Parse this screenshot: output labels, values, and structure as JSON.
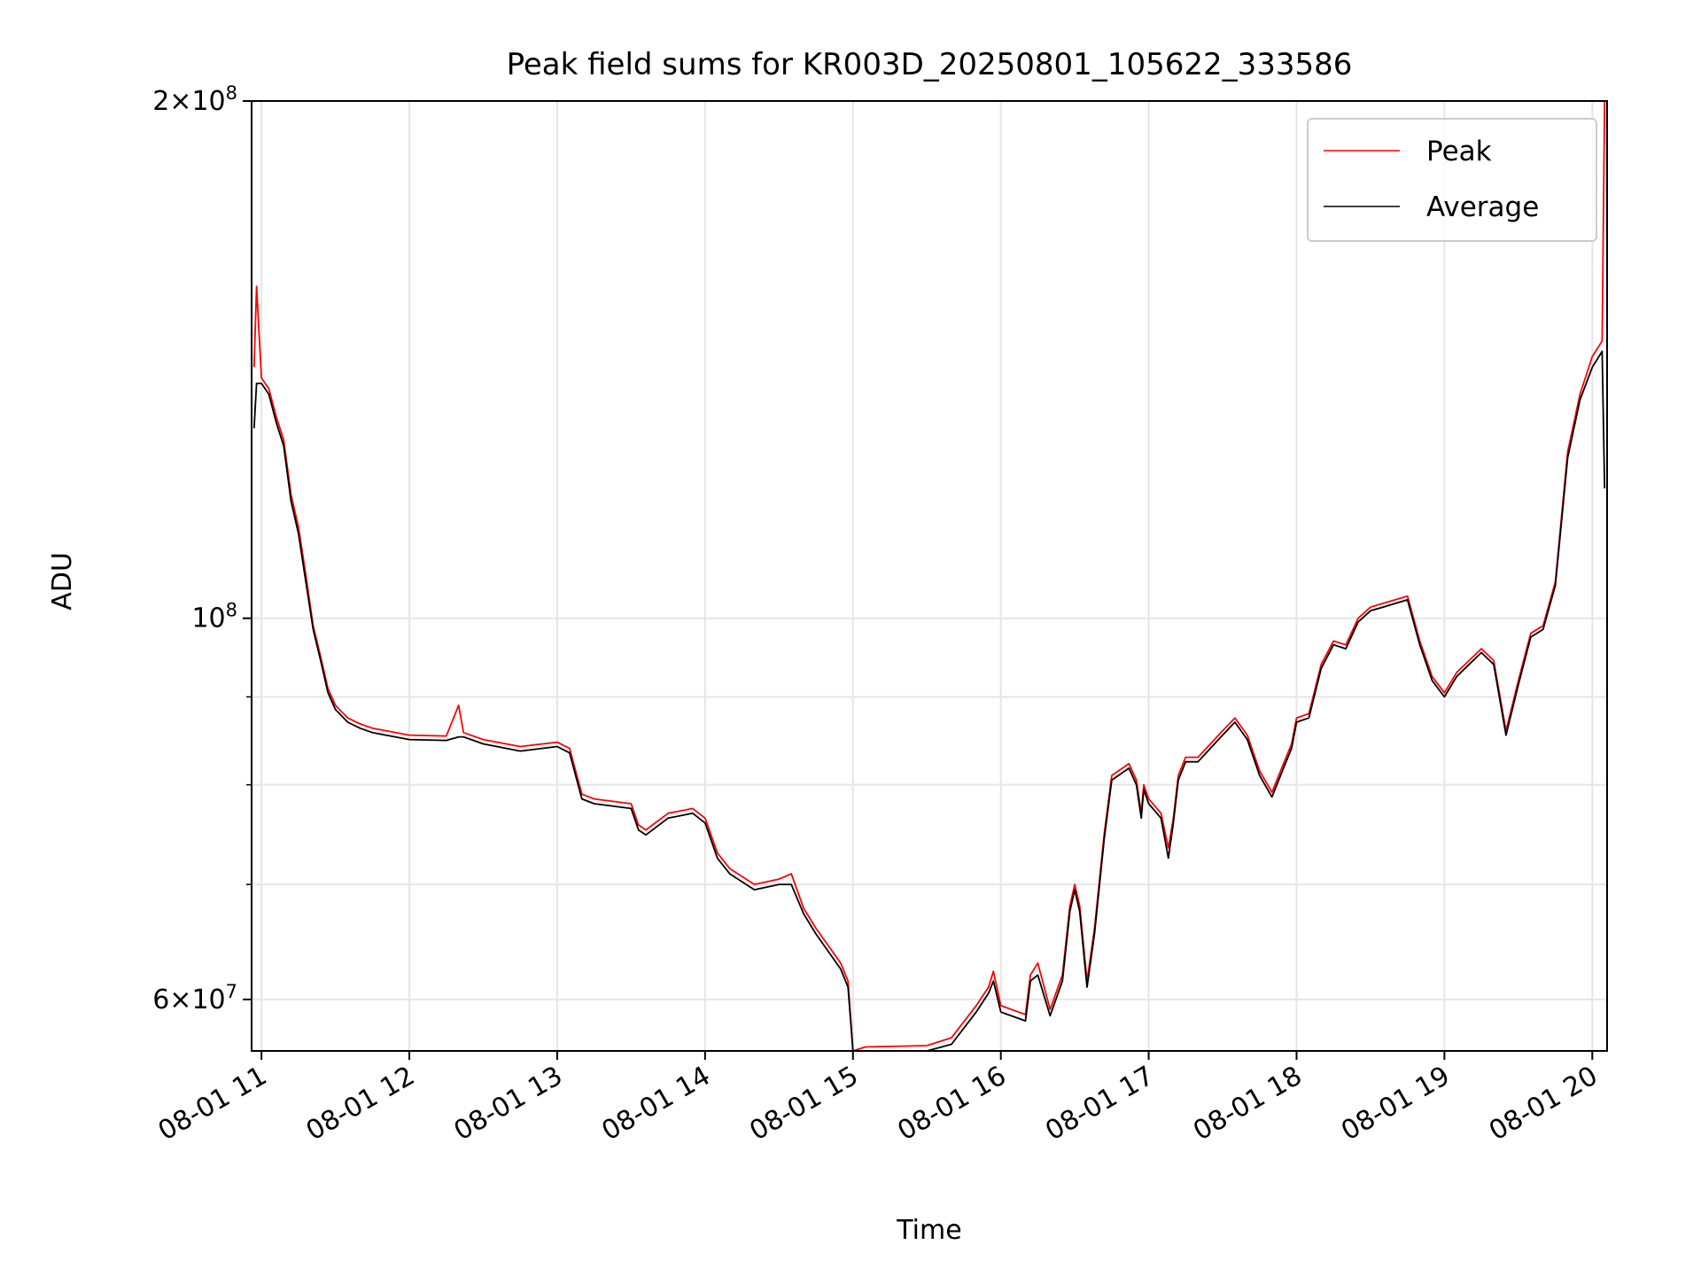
{
  "chart_data": {
    "type": "line",
    "title": "Peak field sums for KR003D_20250801_105622_333586",
    "xlabel": "Time",
    "ylabel": "ADU",
    "yscale": "log",
    "xlim": [
      "2025-08-01 10:56",
      "2025-08-01 20:06"
    ],
    "ylim": [
      56000000,
      200000000
    ],
    "grid": true,
    "legend_position": "top-right",
    "x_ticks": [
      "08-01 11",
      "08-01 12",
      "08-01 13",
      "08-01 14",
      "08-01 15",
      "08-01 16",
      "08-01 17",
      "08-01 18",
      "08-01 19",
      "08-01 20"
    ],
    "y_major_ticks": [
      {
        "value": 60000000,
        "mantissa": "6",
        "exp": "7"
      },
      {
        "value": 100000000,
        "mantissa": "",
        "exp": "8"
      },
      {
        "value": 200000000,
        "mantissa": "2",
        "exp": "8"
      }
    ],
    "y_minor_ticks": [
      70000000,
      80000000,
      90000000
    ],
    "colors": {
      "peak": "#ff0000",
      "average": "#000000",
      "grid": "#e6e6e6"
    },
    "series": [
      {
        "name": "Peak",
        "x": [
          "10:57",
          "10:58",
          "11:00",
          "11:03",
          "11:06",
          "11:09",
          "11:12",
          "11:15",
          "11:18",
          "11:21",
          "11:24",
          "11:27",
          "11:30",
          "11:35",
          "11:40",
          "11:45",
          "12:00",
          "12:15",
          "12:20",
          "12:22",
          "12:30",
          "12:45",
          "13:00",
          "13:05",
          "13:10",
          "13:15",
          "13:30",
          "13:33",
          "13:36",
          "13:45",
          "13:55",
          "14:00",
          "14:05",
          "14:10",
          "14:20",
          "14:30",
          "14:35",
          "14:40",
          "14:45",
          "14:55",
          "14:58",
          "15:00",
          "15:05",
          "15:30",
          "15:40",
          "15:50",
          "15:55",
          "15:57",
          "16:00",
          "16:10",
          "16:12",
          "16:15",
          "16:20",
          "16:25",
          "16:28",
          "16:30",
          "16:32",
          "16:35",
          "16:38",
          "16:42",
          "16:45",
          "16:52",
          "16:55",
          "16:57",
          "16:58",
          "17:00",
          "17:05",
          "17:08",
          "17:10",
          "17:12",
          "17:15",
          "17:20",
          "17:30",
          "17:35",
          "17:40",
          "17:45",
          "17:50",
          "17:55",
          "17:58",
          "18:00",
          "18:05",
          "18:10",
          "18:15",
          "18:20",
          "18:25",
          "18:30",
          "18:35",
          "18:40",
          "18:45",
          "18:50",
          "18:55",
          "19:00",
          "19:05",
          "19:10",
          "19:15",
          "19:20",
          "19:25",
          "19:30",
          "19:35",
          "19:40",
          "19:45",
          "19:50",
          "19:55",
          "20:00",
          "20:04",
          "20:05"
        ],
        "y": [
          140000000,
          156000000,
          138000000,
          136000000,
          131000000,
          127000000,
          118000000,
          113000000,
          106000000,
          99000000,
          95000000,
          91000000,
          89000000,
          87500000,
          86800000,
          86300000,
          85500000,
          85400000,
          89000000,
          85800000,
          85000000,
          84200000,
          84700000,
          84000000,
          79000000,
          78500000,
          78000000,
          75800000,
          75300000,
          77000000,
          77500000,
          76500000,
          73000000,
          71500000,
          70000000,
          70500000,
          71000000,
          67800000,
          66000000,
          63000000,
          61500000,
          55800000,
          56300000,
          56400000,
          57000000,
          59500000,
          61000000,
          62300000,
          59500000,
          58800000,
          62000000,
          63000000,
          59200000,
          62000000,
          68000000,
          70000000,
          68000000,
          61500000,
          66000000,
          75000000,
          81000000,
          82300000,
          80500000,
          77000000,
          80000000,
          78500000,
          77000000,
          73500000,
          76500000,
          81000000,
          83000000,
          83000000,
          86000000,
          87500000,
          85500000,
          81500000,
          79200000,
          82500000,
          84500000,
          87500000,
          88000000,
          94000000,
          97000000,
          96500000,
          100000000,
          101500000,
          102000000,
          102500000,
          103000000,
          97000000,
          92500000,
          90500000,
          93000000,
          94500000,
          96000000,
          94500000,
          86000000,
          92000000,
          98000000,
          99000000,
          105000000,
          125000000,
          135000000,
          142000000,
          145000000,
          200000000
        ]
      },
      {
        "name": "Average",
        "x": [
          "10:57",
          "10:58",
          "11:00",
          "11:03",
          "11:06",
          "11:09",
          "11:12",
          "11:15",
          "11:18",
          "11:21",
          "11:24",
          "11:27",
          "11:30",
          "11:35",
          "11:40",
          "11:45",
          "12:00",
          "12:15",
          "12:20",
          "12:22",
          "12:30",
          "12:45",
          "13:00",
          "13:05",
          "13:10",
          "13:15",
          "13:30",
          "13:33",
          "13:36",
          "13:45",
          "13:55",
          "14:00",
          "14:05",
          "14:10",
          "14:20",
          "14:30",
          "14:35",
          "14:40",
          "14:45",
          "14:55",
          "14:58",
          "15:00",
          "15:05",
          "15:30",
          "15:40",
          "15:50",
          "15:55",
          "15:57",
          "16:00",
          "16:10",
          "16:12",
          "16:15",
          "16:20",
          "16:25",
          "16:28",
          "16:30",
          "16:32",
          "16:35",
          "16:38",
          "16:42",
          "16:45",
          "16:52",
          "16:55",
          "16:57",
          "16:58",
          "17:00",
          "17:05",
          "17:08",
          "17:10",
          "17:12",
          "17:15",
          "17:20",
          "17:30",
          "17:35",
          "17:40",
          "17:45",
          "17:50",
          "17:55",
          "17:58",
          "18:00",
          "18:05",
          "18:10",
          "18:15",
          "18:20",
          "18:25",
          "18:30",
          "18:35",
          "18:40",
          "18:45",
          "18:50",
          "18:55",
          "19:00",
          "19:05",
          "19:10",
          "19:15",
          "19:20",
          "19:25",
          "19:30",
          "19:35",
          "19:40",
          "19:45",
          "19:50",
          "19:55",
          "20:00",
          "20:04",
          "20:05"
        ],
        "y": [
          129000000,
          137000000,
          137000000,
          135000000,
          130000000,
          126000000,
          117000000,
          112000000,
          105000000,
          98500000,
          94500000,
          90500000,
          88500000,
          87000000,
          86300000,
          85800000,
          85000000,
          84900000,
          85300000,
          85300000,
          84500000,
          83700000,
          84200000,
          83500000,
          78500000,
          78000000,
          77500000,
          75300000,
          74800000,
          76500000,
          77000000,
          76000000,
          72500000,
          71000000,
          69500000,
          70000000,
          70000000,
          67300000,
          65500000,
          62500000,
          61000000,
          55500000,
          55800000,
          55900000,
          56500000,
          59000000,
          60500000,
          61500000,
          59000000,
          58300000,
          61500000,
          62000000,
          58700000,
          61500000,
          67500000,
          69500000,
          67500000,
          61000000,
          65500000,
          74500000,
          80500000,
          81800000,
          80000000,
          76500000,
          79500000,
          78000000,
          76500000,
          72500000,
          76000000,
          80500000,
          82500000,
          82500000,
          85500000,
          87000000,
          85000000,
          81000000,
          78700000,
          82000000,
          84000000,
          87000000,
          87500000,
          93500000,
          96500000,
          96000000,
          99500000,
          101000000,
          101500000,
          102000000,
          102500000,
          96500000,
          92000000,
          90000000,
          92500000,
          94000000,
          95500000,
          94000000,
          85500000,
          91500000,
          97500000,
          98500000,
          104500000,
          124000000,
          134000000,
          140000000,
          143000000,
          119000000
        ]
      }
    ]
  }
}
